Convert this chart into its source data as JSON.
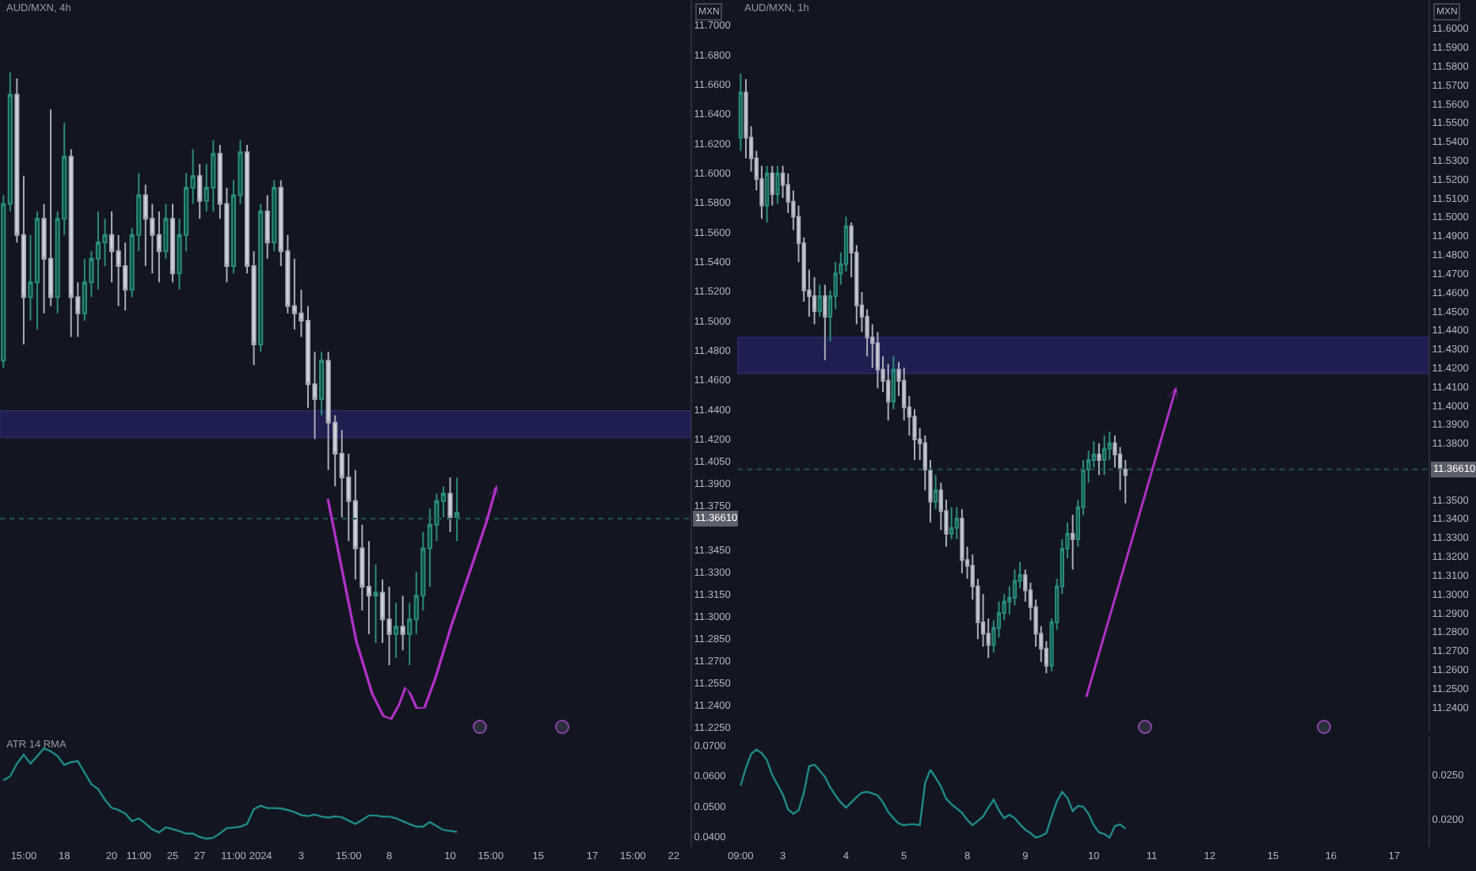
{
  "chart_data": [
    {
      "type": "candlestick",
      "title": "AUD/MXN, 4h",
      "annotations": [
        "MXN"
      ],
      "tick_labels": "y",
      "grid": false,
      "ylim": [
        11.222,
        11.717
      ],
      "categories": [
        null,
        null,
        null,
        null,
        null,
        null,
        null,
        null,
        null,
        null,
        null,
        null,
        null,
        null,
        null,
        null,
        null,
        null,
        null,
        null,
        null,
        null,
        null,
        null,
        null,
        null,
        null,
        null,
        null,
        null,
        null,
        null,
        null,
        null,
        null,
        null,
        null,
        null,
        null,
        null,
        null,
        null,
        null,
        null,
        null,
        null,
        null,
        null,
        null,
        null,
        null,
        null,
        null,
        null,
        null,
        null,
        null,
        null,
        null,
        null,
        null,
        null,
        null,
        null,
        null,
        null,
        null,
        null,
        null,
        null,
        null,
        null,
        null,
        null,
        null,
        null,
        null,
        null,
        null,
        null,
        null,
        null,
        null,
        null,
        null,
        null,
        null,
        null,
        null,
        null,
        null,
        null,
        null,
        null,
        null,
        null,
        null,
        null,
        null,
        null,
        null,
        null
      ],
      "yticks": [
        {
          "value": 11.7,
          "label": "11.7000"
        },
        {
          "value": 11.68,
          "label": "11.6800"
        },
        {
          "value": 11.66,
          "label": "11.6600"
        },
        {
          "value": 11.64,
          "label": "11.6400"
        },
        {
          "value": 11.62,
          "label": "11.6200"
        },
        {
          "value": 11.6,
          "label": "11.6000"
        },
        {
          "value": 11.58,
          "label": "11.5800"
        },
        {
          "value": 11.56,
          "label": "11.5600"
        },
        {
          "value": 11.54,
          "label": "11.5400"
        },
        {
          "value": 11.52,
          "label": "11.5200"
        },
        {
          "value": 11.5,
          "label": "11.5000"
        },
        {
          "value": 11.48,
          "label": "11.4800"
        },
        {
          "value": 11.46,
          "label": "11.4600"
        },
        {
          "value": 11.44,
          "label": "11.4400"
        },
        {
          "value": 11.42,
          "label": "11.4200"
        },
        {
          "value": 11.405,
          "label": "11.4050"
        },
        {
          "value": 11.39,
          "label": "11.3900"
        },
        {
          "value": 11.375,
          "label": "11.3750"
        },
        {
          "value": 11.345,
          "label": "11.3450"
        },
        {
          "value": 11.33,
          "label": "11.3300"
        },
        {
          "value": 11.315,
          "label": "11.3150"
        },
        {
          "value": 11.3,
          "label": "11.3000"
        },
        {
          "value": 11.285,
          "label": "11.2850"
        },
        {
          "value": 11.27,
          "label": "11.2700"
        },
        {
          "value": 11.255,
          "label": "11.2550"
        },
        {
          "value": 11.24,
          "label": "11.2400"
        },
        {
          "value": 11.225,
          "label": "11.2250"
        }
      ],
      "ref_lines": [
        {
          "axis": "y",
          "value": 11.3661,
          "label": "11.36610",
          "color": "#1e5552",
          "line_style": "dotted"
        }
      ],
      "bands": [
        {
          "axis": "y",
          "from": 11.421,
          "to": 11.439,
          "label": null,
          "color": "#2d2a8a"
        }
      ],
      "ohlc": [
        [
          11.473,
          11.585,
          11.468,
          11.579
        ],
        [
          11.579,
          11.668,
          11.574,
          11.653
        ],
        [
          11.653,
          11.664,
          11.553,
          11.558
        ],
        [
          11.558,
          11.598,
          11.484,
          11.516
        ],
        [
          11.516,
          11.558,
          11.5,
          11.526
        ],
        [
          11.526,
          11.574,
          11.494,
          11.569
        ],
        [
          11.569,
          11.579,
          11.505,
          11.542
        ],
        [
          11.542,
          11.643,
          11.51,
          11.516
        ],
        [
          11.516,
          11.574,
          11.505,
          11.569
        ],
        [
          11.569,
          11.634,
          11.558,
          11.611
        ],
        [
          11.611,
          11.616,
          11.489,
          11.516
        ],
        [
          11.516,
          11.526,
          11.489,
          11.505
        ],
        [
          11.505,
          11.542,
          11.5,
          11.526
        ],
        [
          11.526,
          11.547,
          11.516,
          11.542
        ],
        [
          11.542,
          11.574,
          11.521,
          11.553
        ],
        [
          11.553,
          11.569,
          11.537,
          11.558
        ],
        [
          11.558,
          11.574,
          11.526,
          11.547
        ],
        [
          11.547,
          11.558,
          11.51,
          11.537
        ],
        [
          11.537,
          11.553,
          11.507,
          11.521
        ],
        [
          11.521,
          11.563,
          11.516,
          11.558
        ],
        [
          11.558,
          11.6,
          11.547,
          11.585
        ],
        [
          11.585,
          11.592,
          11.537,
          11.569
        ],
        [
          11.569,
          11.579,
          11.532,
          11.558
        ],
        [
          11.558,
          11.574,
          11.526,
          11.547
        ],
        [
          11.547,
          11.579,
          11.542,
          11.569
        ],
        [
          11.569,
          11.579,
          11.526,
          11.532
        ],
        [
          11.532,
          11.569,
          11.521,
          11.558
        ],
        [
          11.558,
          11.6,
          11.547,
          11.59
        ],
        [
          11.59,
          11.616,
          11.579,
          11.598
        ],
        [
          11.598,
          11.606,
          11.569,
          11.581
        ],
        [
          11.581,
          11.606,
          11.574,
          11.59
        ],
        [
          11.59,
          11.622,
          11.574,
          11.613
        ],
        [
          11.613,
          11.619,
          11.569,
          11.579
        ],
        [
          11.579,
          11.59,
          11.526,
          11.537
        ],
        [
          11.537,
          11.595,
          11.532,
          11.585
        ],
        [
          11.585,
          11.622,
          11.579,
          11.614
        ],
        [
          11.614,
          11.619,
          11.532,
          11.537
        ],
        [
          11.537,
          11.547,
          11.47,
          11.484
        ],
        [
          11.484,
          11.579,
          11.479,
          11.574
        ],
        [
          11.574,
          11.585,
          11.542,
          11.553
        ],
        [
          11.553,
          11.595,
          11.547,
          11.59
        ],
        [
          11.59,
          11.595,
          11.537,
          11.547
        ],
        [
          11.547,
          11.558,
          11.505,
          11.51
        ],
        [
          11.51,
          11.542,
          11.494,
          11.505
        ],
        [
          11.505,
          11.521,
          11.489,
          11.5
        ],
        [
          11.5,
          11.51,
          11.441,
          11.457
        ],
        [
          11.457,
          11.479,
          11.42,
          11.447
        ],
        [
          11.447,
          11.479,
          11.436,
          11.473
        ],
        [
          11.473,
          11.479,
          11.399,
          11.431
        ],
        [
          11.431,
          11.436,
          11.388,
          11.41
        ],
        [
          11.41,
          11.426,
          11.367,
          11.394
        ],
        [
          11.394,
          11.41,
          11.351,
          11.378
        ],
        [
          11.378,
          11.399,
          11.325,
          11.346
        ],
        [
          11.346,
          11.362,
          11.304,
          11.32
        ],
        [
          11.32,
          11.351,
          11.288,
          11.314
        ],
        [
          11.314,
          11.335,
          11.282,
          11.316
        ],
        [
          11.316,
          11.325,
          11.282,
          11.298
        ],
        [
          11.298,
          11.32,
          11.267,
          11.288
        ],
        [
          11.288,
          11.309,
          11.272,
          11.293
        ],
        [
          11.293,
          11.314,
          11.277,
          11.288
        ],
        [
          11.288,
          11.309,
          11.267,
          11.298
        ],
        [
          11.298,
          11.33,
          11.288,
          11.314
        ],
        [
          11.314,
          11.357,
          11.304,
          11.346
        ],
        [
          11.346,
          11.373,
          11.32,
          11.362
        ],
        [
          11.362,
          11.383,
          11.351,
          11.378
        ],
        [
          11.378,
          11.388,
          11.367,
          11.383
        ],
        [
          11.383,
          11.394,
          11.357,
          11.367
        ],
        [
          11.367,
          11.394,
          11.351,
          11.37
        ],
        null,
        null,
        null,
        null,
        null,
        null,
        null,
        null,
        null,
        null,
        null,
        null,
        null,
        null,
        null,
        null,
        null,
        null,
        null,
        null,
        null,
        null,
        null,
        null,
        null,
        null,
        null,
        null,
        null,
        null,
        null,
        null,
        null,
        null
      ]
    },
    {
      "type": "line",
      "title": "ATR 14 RMA",
      "grid": false,
      "ylim": [
        0.0364,
        0.073
      ],
      "categories": [
        null,
        null,
        null,
        "15:00",
        null,
        null,
        null,
        null,
        null,
        "18",
        null,
        null,
        null,
        null,
        null,
        null,
        "20",
        null,
        null,
        null,
        "11:00",
        null,
        null,
        null,
        null,
        "25",
        null,
        null,
        null,
        "27",
        null,
        null,
        null,
        null,
        "11:00",
        null,
        null,
        null,
        "2024",
        null,
        null,
        null,
        null,
        null,
        "3",
        null,
        null,
        null,
        null,
        null,
        null,
        "15:00",
        null,
        null,
        null,
        null,
        null,
        "8",
        null,
        null,
        null,
        null,
        null,
        null,
        null,
        null,
        "10",
        null,
        null,
        null,
        null,
        null,
        "15:00",
        null,
        null,
        null,
        null,
        null,
        null,
        "15",
        null,
        null,
        null,
        null,
        null,
        null,
        null,
        "17",
        null,
        null,
        null,
        null,
        null,
        "15:00",
        null,
        null,
        null,
        null,
        null,
        "22",
        null,
        null
      ],
      "yticks": [
        {
          "value": 0.07,
          "label": "0.0700"
        },
        {
          "value": 0.06,
          "label": "0.0600"
        },
        {
          "value": 0.05,
          "label": "0.0500"
        },
        {
          "value": 0.04,
          "label": "0.0400"
        }
      ],
      "series": [
        {
          "color": "#1f8a8a",
          "values": [
            0.0585,
            0.0598,
            0.064,
            0.067,
            0.064,
            0.0665,
            0.069,
            0.0681,
            0.0665,
            0.0636,
            0.0645,
            0.0648,
            0.061,
            0.0572,
            0.0556,
            0.0521,
            0.0494,
            0.0487,
            0.0475,
            0.045,
            0.0459,
            0.0442,
            0.0423,
            0.0413,
            0.043,
            0.0424,
            0.0417,
            0.0409,
            0.0409,
            0.0398,
            0.0392,
            0.0395,
            0.041,
            0.0427,
            0.0429,
            0.0432,
            0.0441,
            0.049,
            0.0501,
            0.0493,
            0.0493,
            0.0492,
            0.0487,
            0.048,
            0.047,
            0.0467,
            0.0472,
            0.0465,
            0.0462,
            0.0466,
            0.0463,
            0.0452,
            0.0441,
            0.0454,
            0.0469,
            0.0469,
            0.0465,
            0.0465,
            0.046,
            0.045,
            0.044,
            0.0432,
            0.0432,
            0.0447,
            0.0434,
            0.0421,
            0.0418,
            0.0415,
            null,
            null,
            null,
            null,
            null,
            null,
            null,
            null,
            null,
            null,
            null,
            null,
            null,
            null,
            null,
            null,
            null,
            null,
            null,
            null,
            null,
            null,
            null,
            null,
            null,
            null,
            null,
            null,
            null,
            null,
            null,
            null,
            null,
            null
          ]
        }
      ]
    },
    {
      "type": "candlestick",
      "title": "AUD/MXN, 1h",
      "annotations": [
        "MXN"
      ],
      "tick_labels": "y",
      "grid": false,
      "ylim": [
        11.227,
        11.615
      ],
      "categories": [
        null,
        null,
        null,
        null,
        null,
        null,
        null,
        null,
        null,
        null,
        null,
        null,
        null,
        null,
        null,
        null,
        null,
        null,
        null,
        null,
        null,
        null,
        null,
        null,
        null,
        null,
        null,
        null,
        null,
        null,
        null,
        null,
        null,
        null,
        null,
        null,
        null,
        null,
        null,
        null,
        null,
        null,
        null,
        null,
        null,
        null,
        null,
        null,
        null,
        null,
        null,
        null,
        null,
        null,
        null,
        null,
        null,
        null,
        null,
        null,
        null,
        null,
        null,
        null,
        null,
        null,
        null,
        null,
        null,
        null,
        null,
        null,
        null,
        null,
        null,
        null,
        null,
        null,
        null,
        null,
        null,
        null,
        null,
        null,
        null,
        null,
        null,
        null,
        null,
        null,
        null,
        null,
        null,
        null,
        null,
        null,
        null,
        null,
        null,
        null,
        null,
        null,
        null,
        null,
        null,
        null,
        null,
        null,
        null,
        null,
        null,
        null,
        null,
        null,
        null,
        null,
        null,
        null,
        null,
        null,
        null,
        null,
        null,
        null,
        null,
        null,
        null,
        null,
        null,
        null,
        null
      ],
      "yticks": [
        {
          "value": 11.6,
          "label": "11.6000"
        },
        {
          "value": 11.59,
          "label": "11.5900"
        },
        {
          "value": 11.58,
          "label": "11.5800"
        },
        {
          "value": 11.57,
          "label": "11.5700"
        },
        {
          "value": 11.56,
          "label": "11.5600"
        },
        {
          "value": 11.55,
          "label": "11.5500"
        },
        {
          "value": 11.54,
          "label": "11.5400"
        },
        {
          "value": 11.53,
          "label": "11.5300"
        },
        {
          "value": 11.52,
          "label": "11.5200"
        },
        {
          "value": 11.51,
          "label": "11.5100"
        },
        {
          "value": 11.5,
          "label": "11.5000"
        },
        {
          "value": 11.49,
          "label": "11.4900"
        },
        {
          "value": 11.48,
          "label": "11.4800"
        },
        {
          "value": 11.47,
          "label": "11.4700"
        },
        {
          "value": 11.46,
          "label": "11.4600"
        },
        {
          "value": 11.45,
          "label": "11.4500"
        },
        {
          "value": 11.44,
          "label": "11.4400"
        },
        {
          "value": 11.43,
          "label": "11.4300"
        },
        {
          "value": 11.42,
          "label": "11.4200"
        },
        {
          "value": 11.41,
          "label": "11.4100"
        },
        {
          "value": 11.4,
          "label": "11.4000"
        },
        {
          "value": 11.39,
          "label": "11.3900"
        },
        {
          "value": 11.38,
          "label": "11.3800"
        },
        {
          "value": 11.35,
          "label": "11.3500"
        },
        {
          "value": 11.34,
          "label": "11.3400"
        },
        {
          "value": 11.33,
          "label": "11.3300"
        },
        {
          "value": 11.32,
          "label": "11.3200"
        },
        {
          "value": 11.31,
          "label": "11.3100"
        },
        {
          "value": 11.3,
          "label": "11.3000"
        },
        {
          "value": 11.29,
          "label": "11.2900"
        },
        {
          "value": 11.28,
          "label": "11.2800"
        },
        {
          "value": 11.27,
          "label": "11.2700"
        },
        {
          "value": 11.26,
          "label": "11.2600"
        },
        {
          "value": 11.25,
          "label": "11.2500"
        },
        {
          "value": 11.24,
          "label": "11.2400"
        }
      ],
      "ref_lines": [
        {
          "axis": "y",
          "value": 11.3661,
          "label": "11.36610",
          "color": "#1e5552",
          "line_style": "dotted"
        }
      ],
      "bands": [
        {
          "axis": "y",
          "from": 11.417,
          "to": 11.436,
          "label": null,
          "color": "#2d2a8a"
        }
      ],
      "ohlc": [
        [
          11.542,
          11.576,
          11.535,
          11.566
        ],
        [
          11.566,
          11.573,
          11.531,
          11.542
        ],
        [
          11.542,
          11.548,
          11.524,
          11.531
        ],
        [
          11.531,
          11.535,
          11.514,
          11.52
        ],
        [
          11.52,
          11.527,
          11.499,
          11.506
        ],
        [
          11.506,
          11.527,
          11.497,
          11.523
        ],
        [
          11.523,
          11.527,
          11.506,
          11.512
        ],
        [
          11.512,
          11.527,
          11.507,
          11.523
        ],
        [
          11.523,
          11.527,
          11.51,
          11.517
        ],
        [
          11.517,
          11.523,
          11.502,
          11.508
        ],
        [
          11.508,
          11.514,
          11.493,
          11.5
        ],
        [
          11.5,
          11.506,
          11.476,
          11.486
        ],
        [
          11.486,
          11.489,
          11.455,
          11.461
        ],
        [
          11.461,
          11.472,
          11.447,
          11.458
        ],
        [
          11.458,
          11.468,
          11.443,
          11.45
        ],
        [
          11.45,
          11.464,
          11.447,
          11.458
        ],
        [
          11.458,
          11.464,
          11.424,
          11.447
        ],
        [
          11.447,
          11.461,
          11.434,
          11.458
        ],
        [
          11.458,
          11.476,
          11.451,
          11.47
        ],
        [
          11.47,
          11.481,
          11.464,
          11.475
        ],
        [
          11.475,
          11.5,
          11.471,
          11.495
        ],
        [
          11.495,
          11.497,
          11.468,
          11.481
        ],
        [
          11.481,
          11.485,
          11.443,
          11.453
        ],
        [
          11.453,
          11.46,
          11.439,
          11.447
        ],
        [
          11.447,
          11.451,
          11.426,
          11.436
        ],
        [
          11.436,
          11.443,
          11.42,
          11.433
        ],
        [
          11.433,
          11.439,
          11.409,
          11.419
        ],
        [
          11.419,
          11.426,
          11.407,
          11.413
        ],
        [
          11.413,
          11.422,
          11.392,
          11.402
        ],
        [
          11.402,
          11.426,
          11.398,
          11.419
        ],
        [
          11.419,
          11.423,
          11.405,
          11.413
        ],
        [
          11.413,
          11.42,
          11.392,
          11.399
        ],
        [
          11.399,
          11.405,
          11.384,
          11.394
        ],
        [
          11.394,
          11.398,
          11.371,
          11.382
        ],
        [
          11.382,
          11.388,
          11.371,
          11.38
        ],
        [
          11.38,
          11.384,
          11.355,
          11.366
        ],
        [
          11.366,
          11.371,
          11.338,
          11.349
        ],
        [
          11.349,
          11.363,
          11.345,
          11.355
        ],
        [
          11.355,
          11.359,
          11.334,
          11.344
        ],
        [
          11.344,
          11.35,
          11.325,
          11.332
        ],
        [
          11.332,
          11.346,
          11.329,
          11.335
        ],
        [
          11.335,
          11.346,
          11.329,
          11.34
        ],
        [
          11.34,
          11.345,
          11.311,
          11.318
        ],
        [
          11.318,
          11.325,
          11.308,
          11.315
        ],
        [
          11.315,
          11.321,
          11.297,
          11.304
        ],
        [
          11.304,
          11.308,
          11.276,
          11.285
        ],
        [
          11.285,
          11.3,
          11.272,
          11.279
        ],
        [
          11.279,
          11.287,
          11.266,
          11.273
        ],
        [
          11.273,
          11.286,
          11.269,
          11.282
        ],
        [
          11.282,
          11.296,
          11.277,
          11.29
        ],
        [
          11.29,
          11.3,
          11.286,
          11.296
        ],
        [
          11.296,
          11.304,
          11.289,
          11.298
        ],
        [
          11.298,
          11.313,
          11.294,
          11.307
        ],
        [
          11.307,
          11.317,
          11.303,
          11.31
        ],
        [
          11.31,
          11.313,
          11.296,
          11.302
        ],
        [
          11.302,
          11.306,
          11.286,
          11.293
        ],
        [
          11.293,
          11.297,
          11.272,
          11.279
        ],
        [
          11.279,
          11.283,
          11.264,
          11.271
        ],
        [
          11.271,
          11.275,
          11.258,
          11.262
        ],
        [
          11.262,
          11.287,
          11.259,
          11.285
        ],
        [
          11.285,
          11.308,
          11.281,
          11.304
        ],
        [
          11.304,
          11.329,
          11.3,
          11.324
        ],
        [
          11.324,
          11.338,
          11.319,
          11.332
        ],
        [
          11.332,
          11.342,
          11.313,
          11.329
        ],
        [
          11.329,
          11.35,
          11.325,
          11.346
        ],
        [
          11.346,
          11.371,
          11.342,
          11.366
        ],
        [
          11.366,
          11.376,
          11.359,
          11.371
        ],
        [
          11.371,
          11.381,
          11.367,
          11.374
        ],
        [
          11.374,
          11.38,
          11.363,
          11.371
        ],
        [
          11.371,
          11.384,
          11.363,
          11.377
        ],
        [
          11.377,
          11.386,
          11.371,
          11.38
        ],
        [
          11.38,
          11.384,
          11.367,
          11.374
        ],
        [
          11.374,
          11.378,
          11.355,
          11.366
        ],
        [
          11.366,
          11.371,
          11.348,
          11.363
        ],
        null,
        null,
        null,
        null,
        null,
        null,
        null,
        null,
        null,
        null,
        null,
        null,
        null,
        null,
        null,
        null,
        null,
        null,
        null,
        null,
        null,
        null,
        null,
        null,
        null,
        null,
        null,
        null,
        null,
        null,
        null,
        null,
        null,
        null,
        null,
        null,
        null,
        null,
        null,
        null,
        null,
        null,
        null,
        null,
        null,
        null,
        null,
        null,
        null,
        null,
        null,
        null,
        null,
        null,
        null,
        null,
        null
      ]
    },
    {
      "type": "line",
      "grid": false,
      "ylim": [
        0.0168,
        0.0294
      ],
      "categories": [
        "09:00",
        null,
        null,
        null,
        null,
        null,
        null,
        null,
        "3",
        null,
        null,
        null,
        null,
        null,
        null,
        null,
        null,
        null,
        null,
        null,
        "4",
        null,
        null,
        null,
        null,
        null,
        null,
        null,
        null,
        null,
        null,
        "5",
        null,
        null,
        null,
        null,
        null,
        null,
        null,
        null,
        null,
        null,
        null,
        "8",
        null,
        null,
        null,
        null,
        null,
        null,
        null,
        null,
        null,
        null,
        "9",
        null,
        null,
        null,
        null,
        null,
        null,
        null,
        null,
        null,
        null,
        null,
        null,
        "10",
        null,
        null,
        null,
        null,
        null,
        null,
        null,
        null,
        null,
        null,
        "11",
        null,
        null,
        null,
        null,
        null,
        null,
        null,
        null,
        null,
        null,
        "12",
        null,
        null,
        null,
        null,
        null,
        null,
        null,
        null,
        null,
        null,
        null,
        "15",
        null,
        null,
        null,
        null,
        null,
        null,
        null,
        null,
        null,
        null,
        "16",
        null,
        null,
        null,
        null,
        null,
        null,
        null,
        null,
        null,
        null,
        null,
        "17",
        null,
        null,
        null,
        null,
        null,
        null
      ],
      "yticks": [
        {
          "value": 0.025,
          "label": "0.0250"
        },
        {
          "value": 0.02,
          "label": "0.0200"
        }
      ],
      "series": [
        {
          "color": "#1f8a8a",
          "values": [
            0.0238,
            0.0258,
            0.0274,
            0.0279,
            0.0275,
            0.0267,
            0.025,
            0.0239,
            0.0228,
            0.0211,
            0.0206,
            0.021,
            0.023,
            0.026,
            0.0262,
            0.0255,
            0.0248,
            0.0236,
            0.0227,
            0.0219,
            0.0213,
            0.0219,
            0.0225,
            0.023,
            0.0231,
            0.0229,
            0.0227,
            0.0219,
            0.0208,
            0.0201,
            0.0195,
            0.0193,
            0.0194,
            0.0194,
            0.0193,
            0.0241,
            0.0256,
            0.0247,
            0.0237,
            0.0223,
            0.0217,
            0.0212,
            0.0207,
            0.0199,
            0.0193,
            0.0198,
            0.0203,
            0.0213,
            0.0222,
            0.021,
            0.0201,
            0.0205,
            0.0201,
            0.0194,
            0.0188,
            0.0184,
            0.0179,
            0.0181,
            0.0184,
            0.0203,
            0.022,
            0.0231,
            0.0224,
            0.0209,
            0.0215,
            0.0214,
            0.0206,
            0.0193,
            0.0185,
            0.0183,
            0.0179,
            0.0192,
            0.0194,
            0.0189,
            null,
            null,
            null,
            null,
            null,
            null,
            null,
            null,
            null,
            null,
            null,
            null,
            null,
            null,
            null,
            null,
            null,
            null,
            null,
            null,
            null,
            null,
            null,
            null,
            null,
            null,
            null,
            null,
            null,
            null,
            null,
            null,
            null,
            null,
            null,
            null,
            null,
            null,
            null,
            null,
            null,
            null,
            null,
            null,
            null,
            null,
            null,
            null,
            null,
            null,
            null,
            null,
            null,
            null,
            null,
            null,
            null
          ]
        }
      ]
    }
  ]
}
